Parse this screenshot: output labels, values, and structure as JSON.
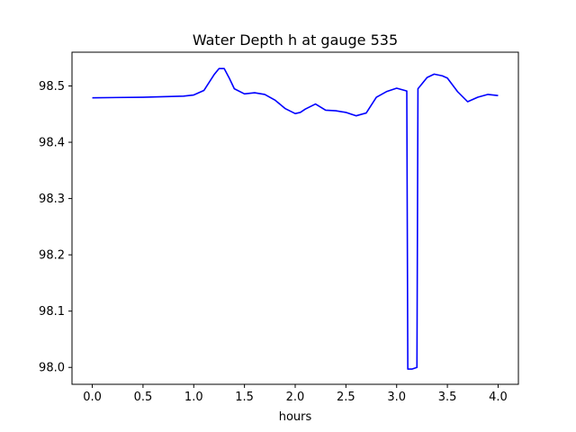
{
  "chart_data": {
    "type": "line",
    "title": "Water Depth h at gauge 535",
    "xlabel": "hours",
    "ylabel": "",
    "xlim": [
      -0.2,
      4.2
    ],
    "ylim": [
      97.97,
      98.56
    ],
    "xticks": [
      0.0,
      0.5,
      1.0,
      1.5,
      2.0,
      2.5,
      3.0,
      3.5,
      4.0
    ],
    "xtick_labels": [
      "0.0",
      "0.5",
      "1.0",
      "1.5",
      "2.0",
      "2.5",
      "3.0",
      "3.5",
      "4.0"
    ],
    "yticks": [
      98.0,
      98.1,
      98.2,
      98.3,
      98.4,
      98.5
    ],
    "ytick_labels": [
      "98.0",
      "98.1",
      "98.2",
      "98.3",
      "98.4",
      "98.5"
    ],
    "grid": false,
    "series": [
      {
        "color": "#0000ff",
        "x": [
          0.0,
          0.5,
          0.9,
          1.0,
          1.1,
          1.2,
          1.25,
          1.3,
          1.35,
          1.4,
          1.5,
          1.6,
          1.7,
          1.8,
          1.9,
          2.0,
          2.05,
          2.1,
          2.2,
          2.3,
          2.4,
          2.5,
          2.6,
          2.7,
          2.8,
          2.9,
          3.0,
          3.1,
          3.11,
          3.15,
          3.2,
          3.21,
          3.3,
          3.37,
          3.45,
          3.5,
          3.6,
          3.7,
          3.8,
          3.9,
          4.0
        ],
        "y": [
          98.479,
          98.48,
          98.482,
          98.484,
          98.492,
          98.52,
          98.531,
          98.531,
          98.514,
          98.495,
          98.486,
          98.488,
          98.485,
          98.475,
          98.46,
          98.451,
          98.453,
          98.459,
          98.468,
          98.457,
          98.456,
          98.453,
          98.447,
          98.452,
          98.48,
          98.49,
          98.496,
          98.491,
          97.997,
          97.997,
          98.0,
          98.495,
          98.515,
          98.521,
          98.518,
          98.514,
          98.49,
          98.472,
          98.48,
          98.485,
          98.483
        ]
      }
    ]
  }
}
